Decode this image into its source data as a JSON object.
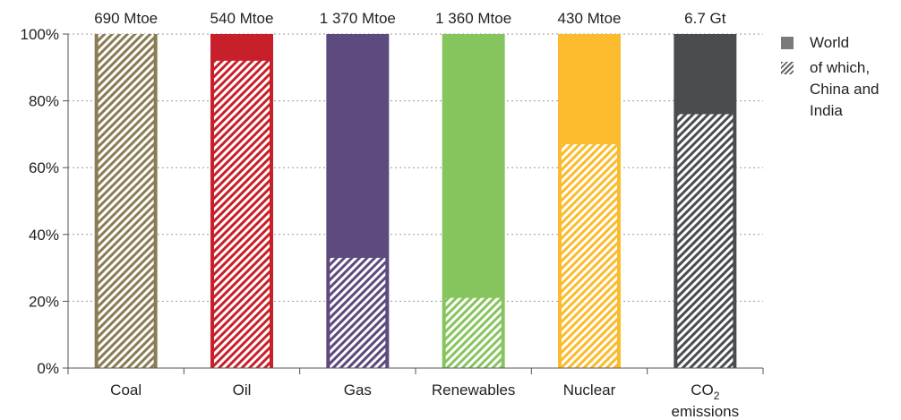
{
  "chart_data": {
    "type": "bar",
    "categories": [
      "Coal",
      "Oil",
      "Gas",
      "Renewables",
      "Nuclear",
      "CO2 emissions"
    ],
    "category_labels": [
      {
        "main": "Coal",
        "sub": "",
        "line2": ""
      },
      {
        "main": "Oil",
        "sub": "",
        "line2": ""
      },
      {
        "main": "Gas",
        "sub": "",
        "line2": ""
      },
      {
        "main": "Renewables",
        "sub": "",
        "line2": ""
      },
      {
        "main": "Nuclear",
        "sub": "",
        "line2": ""
      },
      {
        "main": "CO",
        "sub": "2",
        "line2": "emissions"
      }
    ],
    "totals": [
      "690 Mtoe",
      "540 Mtoe",
      "1 370 Mtoe",
      "1 360 Mtoe",
      "430 Mtoe",
      "6.7 Gt"
    ],
    "series": [
      {
        "name": "World",
        "values": [
          100,
          100,
          100,
          100,
          100,
          100
        ]
      },
      {
        "name": "of which, China and India",
        "values": [
          100,
          92,
          33,
          21,
          67,
          76
        ]
      }
    ],
    "colors": [
      "#8a7d55",
      "#c8202a",
      "#5d4a7e",
      "#86c55e",
      "#fbbb2c",
      "#4a4d50"
    ],
    "y_ticks": [
      "0%",
      "20%",
      "40%",
      "60%",
      "80%",
      "100%"
    ],
    "ylim": [
      0,
      100
    ],
    "grid": true,
    "legend_position": "right",
    "legend": [
      {
        "label": "World",
        "style": "solid"
      },
      {
        "label": "of which, China and India",
        "style": "hatched"
      }
    ]
  }
}
